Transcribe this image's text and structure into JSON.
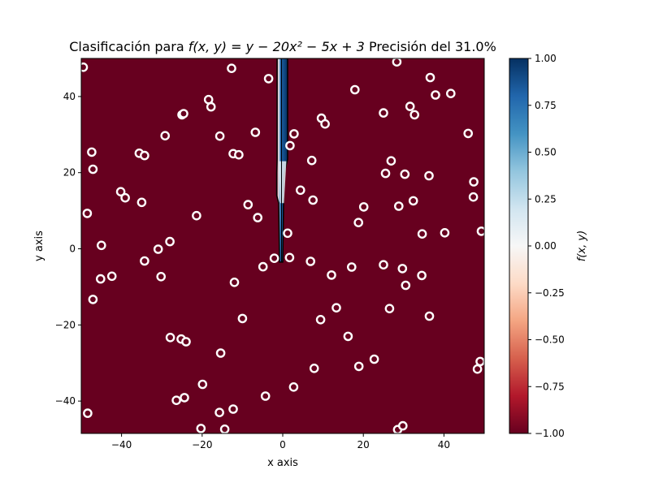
{
  "chart_data": {
    "type": "scatter",
    "title_prefix": "Clasificación para ",
    "title_formula": "f(x, y) = y − 20x² − 5x + 3",
    "title_suffix": " Precisión del 31.0%",
    "xlabel": "x axis",
    "ylabel": "y axis",
    "colorbar_label": "f(x, y)",
    "xlim": [
      -50,
      50
    ],
    "ylim": [
      -48.5,
      50
    ],
    "x_ticks": [
      -40,
      -20,
      0,
      20,
      40
    ],
    "y_ticks": [
      -40,
      -20,
      0,
      20,
      40
    ],
    "colorbar_range": [
      -1.0,
      1.0
    ],
    "colorbar_ticks": [
      "1.00",
      "0.75",
      "0.50",
      "0.25",
      "0.00",
      "-0.25",
      "-0.50",
      "-0.75",
      "-1.00"
    ],
    "colormap": "RdBu",
    "background_class_color": "#67001f",
    "positive_class_color": "#053061",
    "marker_edge_color": "#ffffff",
    "grid": false,
    "points": [
      [
        -49.5,
        47.7
      ],
      [
        -47.4,
        25.4
      ],
      [
        -47.1,
        20.9
      ],
      [
        -48.5,
        9.3
      ],
      [
        -45.0,
        0.9
      ],
      [
        -45.2,
        -7.9
      ],
      [
        -47.1,
        -13.3
      ],
      [
        -48.4,
        -43.2
      ],
      [
        -42.4,
        -7.2
      ],
      [
        -40.2,
        15.0
      ],
      [
        -39.1,
        13.4
      ],
      [
        -35.6,
        25.1
      ],
      [
        -34.3,
        24.5
      ],
      [
        -35.0,
        12.2
      ],
      [
        -34.3,
        -3.2
      ],
      [
        -30.9,
        -0.1
      ],
      [
        -30.2,
        -7.3
      ],
      [
        -29.2,
        29.7
      ],
      [
        -28.0,
        1.9
      ],
      [
        -27.9,
        -23.3
      ],
      [
        -26.4,
        -39.8
      ],
      [
        -25.0,
        35.2
      ],
      [
        -24.6,
        35.5
      ],
      [
        -25.2,
        -23.7
      ],
      [
        -24.0,
        -24.4
      ],
      [
        -24.4,
        -39.1
      ],
      [
        -21.4,
        8.7
      ],
      [
        -19.9,
        -35.6
      ],
      [
        -20.3,
        -47.2
      ],
      [
        -18.4,
        39.2
      ],
      [
        -17.8,
        37.3
      ],
      [
        -15.6,
        29.6
      ],
      [
        -15.4,
        -27.4
      ],
      [
        -15.7,
        -43.0
      ],
      [
        -14.4,
        -47.4
      ],
      [
        -12.7,
        47.4
      ],
      [
        -12.3,
        25.0
      ],
      [
        -10.9,
        24.7
      ],
      [
        -12.0,
        -8.8
      ],
      [
        -12.3,
        -42.1
      ],
      [
        -10.0,
        -18.3
      ],
      [
        -8.6,
        11.6
      ],
      [
        -6.8,
        30.6
      ],
      [
        -6.2,
        8.2
      ],
      [
        -4.9,
        -4.7
      ],
      [
        -3.5,
        44.7
      ],
      [
        -4.3,
        -38.7
      ],
      [
        -2.1,
        -2.5
      ],
      [
        1.2,
        4.1
      ],
      [
        1.8,
        27.1
      ],
      [
        2.8,
        30.2
      ],
      [
        1.7,
        -2.3
      ],
      [
        2.7,
        -36.3
      ],
      [
        4.4,
        15.4
      ],
      [
        7.2,
        23.2
      ],
      [
        7.5,
        12.8
      ],
      [
        6.9,
        -3.3
      ],
      [
        7.8,
        -31.4
      ],
      [
        9.6,
        34.3
      ],
      [
        10.5,
        32.8
      ],
      [
        9.4,
        -18.6
      ],
      [
        12.1,
        -6.9
      ],
      [
        13.3,
        -15.5
      ],
      [
        16.2,
        -23.0
      ],
      [
        17.1,
        -4.8
      ],
      [
        17.9,
        41.8
      ],
      [
        18.8,
        6.9
      ],
      [
        20.1,
        11.0
      ],
      [
        18.9,
        -30.9
      ],
      [
        22.7,
        -29.0
      ],
      [
        25.0,
        35.7
      ],
      [
        25.5,
        19.8
      ],
      [
        25.0,
        -4.2
      ],
      [
        26.9,
        23.1
      ],
      [
        26.5,
        -15.7
      ],
      [
        28.3,
        49.1
      ],
      [
        28.8,
        11.2
      ],
      [
        29.7,
        -5.2
      ],
      [
        30.3,
        19.6
      ],
      [
        30.5,
        -9.6
      ],
      [
        28.5,
        -47.5
      ],
      [
        29.8,
        -46.5
      ],
      [
        31.6,
        37.4
      ],
      [
        32.7,
        35.2
      ],
      [
        32.4,
        12.6
      ],
      [
        34.5,
        -7.0
      ],
      [
        34.6,
        3.9
      ],
      [
        36.3,
        19.2
      ],
      [
        36.6,
        45.0
      ],
      [
        37.9,
        40.4
      ],
      [
        36.4,
        -17.7
      ],
      [
        40.2,
        4.2
      ],
      [
        41.7,
        40.8
      ],
      [
        46.0,
        30.3
      ],
      [
        47.4,
        17.6
      ],
      [
        47.3,
        13.6
      ],
      [
        48.3,
        -31.6
      ],
      [
        49.0,
        -29.6
      ],
      [
        49.3,
        4.6
      ]
    ]
  }
}
